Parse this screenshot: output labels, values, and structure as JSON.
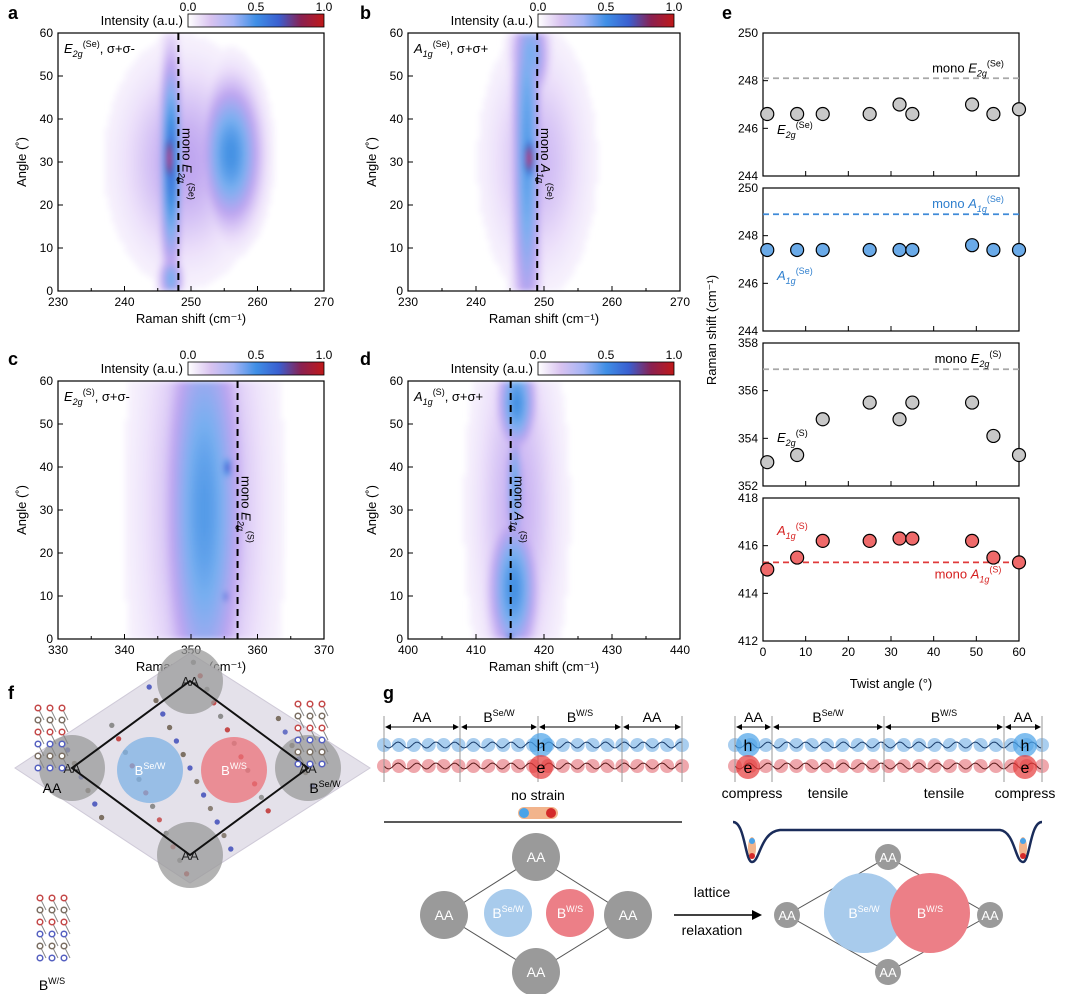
{
  "panel_letters": [
    "a",
    "b",
    "c",
    "d",
    "e",
    "f",
    "g"
  ],
  "colorbar": {
    "label": "Intensity (a.u.)",
    "ticks": [
      "0.0",
      "0.5",
      "1.0"
    ],
    "stops": [
      "#ffffff",
      "#d9c3f0",
      "#a5b4f5",
      "#3f8fe6",
      "#3a5fd0",
      "#8a2050",
      "#c01818"
    ]
  },
  "colors": {
    "gray_marker": "#c8c8c8",
    "blue_marker": "#6aaae8",
    "red_marker": "#ef6a6a",
    "gray_line": "#a8a8a8",
    "blue_line": "#3f8ad8",
    "red_line": "#e03a3a",
    "blue_text": "#2f7fce",
    "red_text": "#d62020",
    "aa_gray": "#9a9a9a",
    "b_sew_blue": "#a8cbec",
    "b_ws_red": "#ec7f87"
  },
  "chart_data": [
    {
      "id": "a",
      "type": "heatmap",
      "xlabel": "Raman shift (cm⁻¹)",
      "ylabel": "Angle (˚)",
      "xlim": [
        230,
        270
      ],
      "ylim": [
        0,
        60
      ],
      "xticks": [
        230,
        240,
        250,
        260,
        270
      ],
      "yticks": [
        0,
        10,
        20,
        30,
        40,
        50,
        60
      ],
      "mode_base": "E",
      "mode_sub": "2g",
      "mode_sup": "(Se)",
      "polarization": ", σ+σ-",
      "line_x": 248.1,
      "line_label": "mono E",
      "features": [
        {
          "x": 247,
          "y": 30,
          "sx": 1.6,
          "sy": 22,
          "v": 0.75
        },
        {
          "x": 246.7,
          "y": 31,
          "sx": 0.9,
          "sy": 8,
          "v": 1.0
        },
        {
          "x": 256,
          "y": 32,
          "sx": 4.0,
          "sy": 15,
          "v": 0.6
        },
        {
          "x": 249,
          "y": 30,
          "sx": 9,
          "sy": 22,
          "v": 0.25
        },
        {
          "x": 247,
          "y": 3,
          "sx": 1.6,
          "sy": 5,
          "v": 0.45
        }
      ]
    },
    {
      "id": "b",
      "type": "heatmap",
      "xlabel": "Raman shift (cm⁻¹)",
      "ylabel": "Angle (˚)",
      "xlim": [
        230,
        270
      ],
      "ylim": [
        0,
        60
      ],
      "xticks": [
        230,
        240,
        250,
        260,
        270
      ],
      "yticks": [
        0,
        10,
        20,
        30,
        40,
        50,
        60
      ],
      "mode_base": "A",
      "mode_sub": "1g",
      "mode_sup": "(Se)",
      "polarization": ", σ+σ+",
      "line_x": 249.0,
      "line_label": "mono A",
      "features": [
        {
          "x": 247.5,
          "y": 33,
          "sx": 2.0,
          "sy": 40,
          "v": 0.55
        },
        {
          "x": 247.8,
          "y": 31,
          "sx": 1.0,
          "sy": 6,
          "v": 1.0
        },
        {
          "x": 248,
          "y": 55,
          "sx": 2.5,
          "sy": 10,
          "v": 0.45
        },
        {
          "x": 249,
          "y": 30,
          "sx": 7,
          "sy": 25,
          "v": 0.2
        }
      ]
    },
    {
      "id": "c",
      "type": "heatmap",
      "xlabel": "Raman shift (cm⁻¹)",
      "ylabel": "Angle (˚)",
      "xlim": [
        330,
        370
      ],
      "ylim": [
        0,
        60
      ],
      "xticks": [
        330,
        340,
        350,
        360,
        370
      ],
      "yticks": [
        0,
        10,
        20,
        30,
        40,
        50,
        60
      ],
      "mode_base": "E",
      "mode_sub": "2g",
      "mode_sup": "(S)",
      "polarization": ", σ+σ-",
      "line_x": 357.0,
      "line_label": "mono E",
      "features": [
        {
          "x": 352,
          "y": 30,
          "sx": 5.5,
          "sy": 45,
          "v": 0.55
        },
        {
          "x": 355.5,
          "y": 40,
          "sx": 0.5,
          "sy": 2.5,
          "v": 1.0
        },
        {
          "x": 355.3,
          "y": 10,
          "sx": 0.4,
          "sy": 1.5,
          "v": 0.85
        },
        {
          "x": 352,
          "y": 30,
          "sx": 9,
          "sy": 60,
          "v": 0.25
        }
      ]
    },
    {
      "id": "d",
      "type": "heatmap",
      "xlabel": "Raman shift (cm⁻¹)",
      "ylabel": "Angle (˚)",
      "xlim": [
        400,
        440
      ],
      "ylim": [
        0,
        60
      ],
      "xticks": [
        400,
        410,
        420,
        430,
        440
      ],
      "yticks": [
        0,
        10,
        20,
        30,
        40,
        50,
        60
      ],
      "mode_base": "A",
      "mode_sub": "1g",
      "mode_sup": "(S)",
      "polarization": ", σ+σ+",
      "line_x": 415.1,
      "line_label": "mono A",
      "features": [
        {
          "x": 416,
          "y": 55,
          "sx": 2.5,
          "sy": 10,
          "v": 0.6
        },
        {
          "x": 415.5,
          "y": 12,
          "sx": 3.2,
          "sy": 15,
          "v": 0.6
        },
        {
          "x": 415.7,
          "y": 35,
          "sx": 1.3,
          "sy": 14,
          "v": 0.5
        },
        {
          "x": 415,
          "y": 0.5,
          "sx": 0.5,
          "sy": 1.2,
          "v": 1.0
        },
        {
          "x": 416,
          "y": 30,
          "sx": 6,
          "sy": 40,
          "v": 0.22
        }
      ]
    },
    {
      "id": "e",
      "type": "scatter",
      "xlabel": "Twist angle (°)",
      "ylabel": "Raman shift (cm⁻¹)",
      "xlim": [
        0,
        60
      ],
      "xticks": [
        0,
        10,
        20,
        30,
        40,
        50,
        60
      ],
      "x": [
        1,
        8,
        14,
        25,
        32,
        35,
        49,
        54,
        60
      ],
      "subplots": [
        {
          "mode": "E2g(Se)",
          "ylim": [
            244,
            250
          ],
          "yticks": [
            244,
            246,
            248,
            250
          ],
          "mono_value": 248.1,
          "mono_base": "mono E",
          "mono_sub": "2g",
          "mono_sup": "(Se)",
          "label_base": "E",
          "label_sub": "2g",
          "label_sup": "(Se)",
          "color": "gray",
          "y": [
            246.6,
            246.6,
            246.6,
            246.6,
            247.0,
            246.6,
            247.0,
            246.6,
            246.8
          ]
        },
        {
          "mode": "A1g(Se)",
          "ylim": [
            244,
            250
          ],
          "yticks": [
            244,
            246,
            248,
            250
          ],
          "mono_value": 248.9,
          "mono_base": "mono A",
          "mono_sub": "1g",
          "mono_sup": "(Se)",
          "label_base": "A",
          "label_sub": "1g",
          "label_sup": "(Se)",
          "color": "blue",
          "y": [
            247.4,
            247.4,
            247.4,
            247.4,
            247.4,
            247.4,
            247.6,
            247.4,
            247.4
          ]
        },
        {
          "mode": "E2g(S)",
          "ylim": [
            352,
            358
          ],
          "yticks": [
            352,
            354,
            356,
            358
          ],
          "mono_value": 356.9,
          "mono_base": "mono E",
          "mono_sub": "2g",
          "mono_sup": "(S)",
          "label_base": "E",
          "label_sub": "2g",
          "label_sup": "(S)",
          "color": "gray",
          "y": [
            353.0,
            353.3,
            354.8,
            355.5,
            354.8,
            355.5,
            355.5,
            354.1,
            353.3
          ]
        },
        {
          "mode": "A1g(S)",
          "ylim": [
            412,
            418
          ],
          "yticks": [
            412,
            414,
            416,
            418
          ],
          "mono_value": 415.3,
          "mono_base": "mono A",
          "mono_sub": "1g",
          "mono_sup": "(S)",
          "label_base": "A",
          "label_sub": "1g",
          "label_sup": "(S)",
          "color": "red",
          "y": [
            415.0,
            415.5,
            416.2,
            416.2,
            416.3,
            416.3,
            416.2,
            415.5,
            415.3
          ]
        }
      ]
    }
  ],
  "panel_f": {
    "aa": "AA",
    "b": "B",
    "sup_sew": "Se/W",
    "sup_ws": "W/S",
    "inset_labels": [
      {
        "base": "AA",
        "sup": ""
      },
      {
        "base": "B",
        "sup": "Se/W"
      },
      {
        "base": "B",
        "sup": "W/S"
      }
    ]
  },
  "panel_g": {
    "aa": "AA",
    "b": "B",
    "sup_sew": "Se/W",
    "sup_ws": "W/S",
    "h": "h",
    "e": "e",
    "no_strain": "no strain",
    "compress": "compress",
    "tensile": "tensile",
    "arrow_label_1": "lattice",
    "arrow_label_2": "relaxation"
  }
}
